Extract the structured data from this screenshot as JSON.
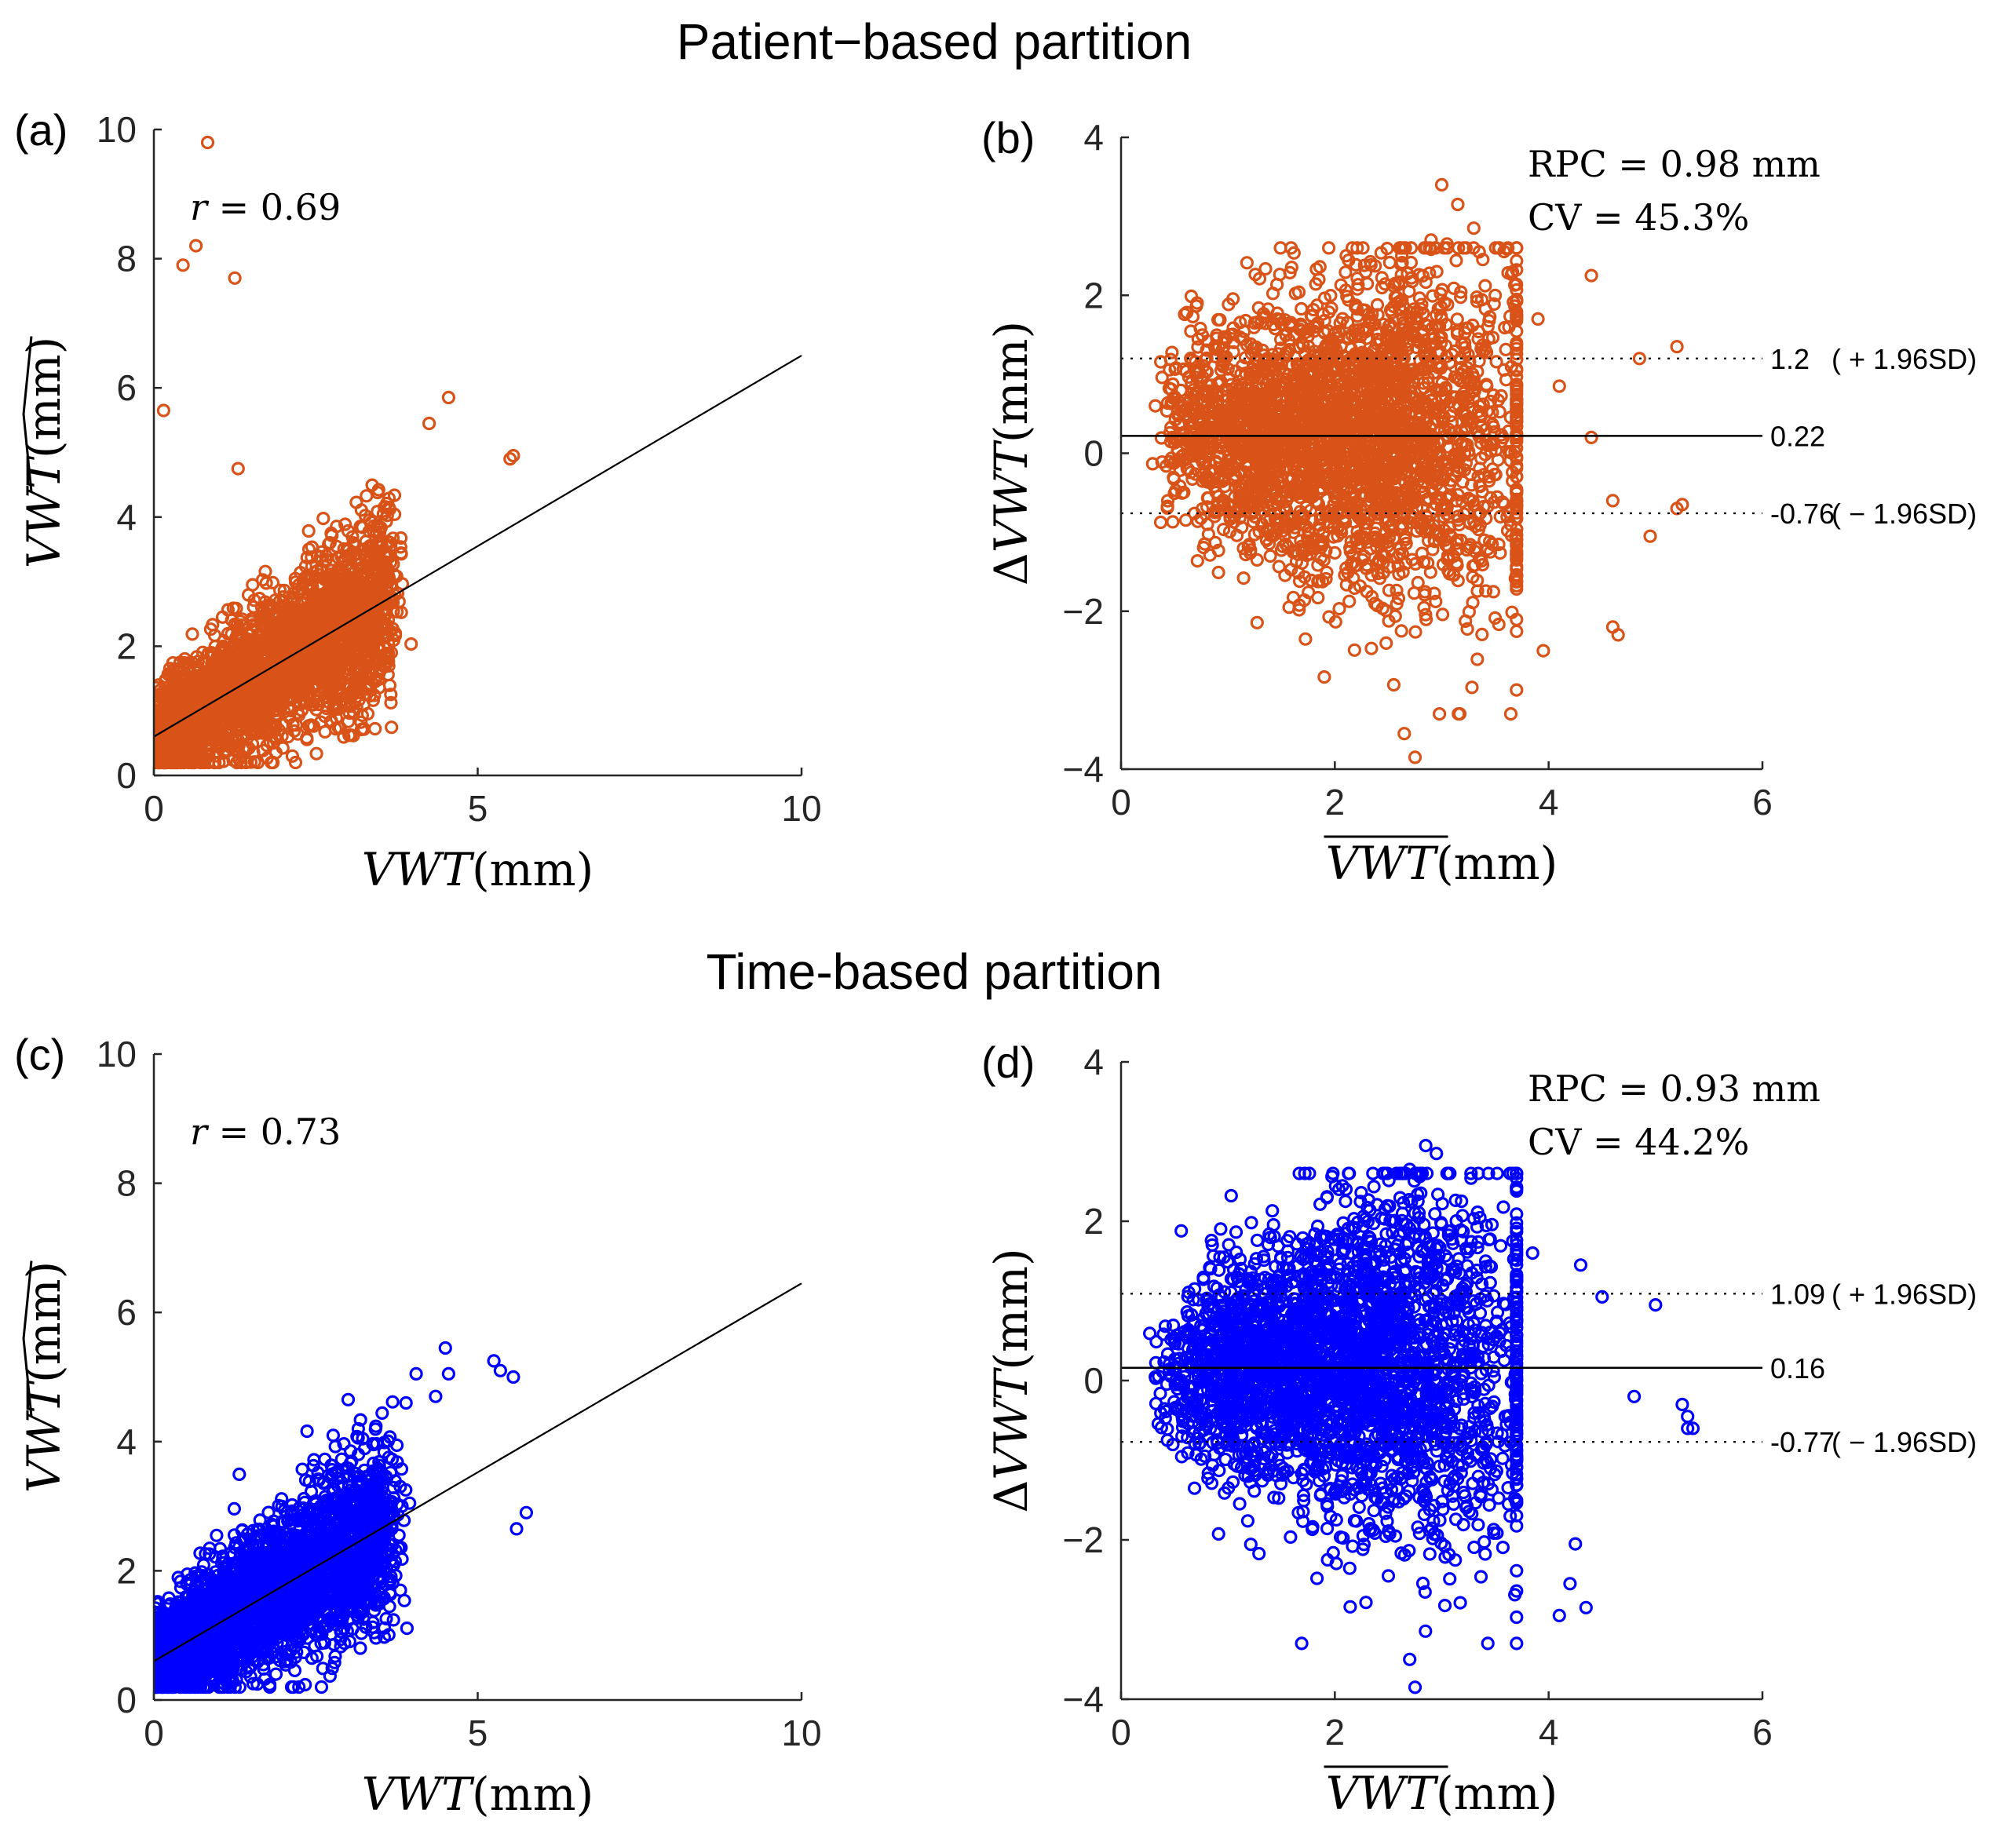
{
  "titles": {
    "top": "Patient−based partition",
    "bottom": "Time-based partition"
  },
  "colors": {
    "patient": "#D95319",
    "time": "#0000FF"
  },
  "chart_data": [
    {
      "id": "a",
      "type": "scatter",
      "panel_label": "(a)",
      "x_axis": {
        "label_var": "VWT",
        "label_unit": "(mm)",
        "lim": [
          0,
          10
        ],
        "ticks": [
          0,
          5,
          10
        ]
      },
      "y_axis": {
        "label_var": "VWT̂",
        "label_unit": "(mm)",
        "label_hat": true,
        "lim": [
          0,
          10
        ],
        "ticks": [
          0,
          2,
          4,
          6,
          8,
          10
        ]
      },
      "annotation": {
        "symbol": "r",
        "text": " = 0.69"
      },
      "fit_line": {
        "x": [
          0,
          10
        ],
        "y": [
          0.6,
          6.5
        ]
      },
      "series": [
        {
          "color": "#D95319",
          "marker": "circle-open",
          "n_points": 3000,
          "x_range": [
            0.1,
            5.8
          ],
          "y_range": [
            0,
            9.8
          ]
        }
      ],
      "outliers": [
        [
          0.83,
          9.8
        ],
        [
          0.65,
          8.2
        ],
        [
          0.45,
          7.9
        ],
        [
          1.25,
          7.7
        ],
        [
          0.15,
          5.65
        ],
        [
          4.55,
          5.85
        ],
        [
          4.25,
          5.45
        ],
        [
          5.55,
          4.95
        ],
        [
          5.5,
          4.9
        ],
        [
          1.3,
          4.75
        ]
      ]
    },
    {
      "id": "b",
      "type": "scatter",
      "panel_label": "(b)",
      "x_axis": {
        "label_var": "VWT",
        "label_unit": "(mm)",
        "label_bar": true,
        "lim": [
          0,
          6
        ],
        "ticks": [
          0,
          2,
          4,
          6
        ]
      },
      "y_axis": {
        "label_prefix": "Δ",
        "label_var": "VWT",
        "label_unit": "(mm)",
        "lim": [
          -4,
          4
        ],
        "ticks": [
          -4,
          -2,
          0,
          2,
          4
        ]
      },
      "annotation": {
        "line1": "RPC = 0.98 mm",
        "line2": "CV = 45.3%"
      },
      "mean_line": {
        "value": 0.22,
        "label": "0.22"
      },
      "upper_loa": {
        "value": 1.2,
        "label": "1.2",
        "suffix": "( + 1.96SD)"
      },
      "lower_loa": {
        "value": -0.76,
        "label": "-0.76",
        "suffix": "( − 1.96SD)"
      },
      "series": [
        {
          "color": "#D95319",
          "marker": "circle-open",
          "n_points": 3000,
          "x_range": [
            0.2,
            5.3
          ],
          "y_range": [
            -3.85,
            3.4
          ]
        }
      ],
      "outliers": [
        [
          3.0,
          3.4
        ],
        [
          3.15,
          3.15
        ],
        [
          3.3,
          2.85
        ],
        [
          2.9,
          2.7
        ],
        [
          3.05,
          2.65
        ],
        [
          3.35,
          2.55
        ],
        [
          4.4,
          2.25
        ],
        [
          3.5,
          2.0
        ],
        [
          3.9,
          1.7
        ],
        [
          4.85,
          1.2
        ],
        [
          5.2,
          1.35
        ],
        [
          4.1,
          0.85
        ],
        [
          4.4,
          0.2
        ],
        [
          5.2,
          -0.7
        ],
        [
          5.25,
          -0.65
        ],
        [
          4.6,
          -0.6
        ],
        [
          4.95,
          -1.05
        ],
        [
          4.6,
          -2.2
        ],
        [
          4.65,
          -2.3
        ],
        [
          2.75,
          -3.85
        ],
        [
          2.65,
          -3.55
        ],
        [
          3.95,
          -2.5
        ]
      ]
    },
    {
      "id": "c",
      "type": "scatter",
      "panel_label": "(c)",
      "x_axis": {
        "label_var": "VWT",
        "label_unit": "(mm)",
        "lim": [
          0,
          10
        ],
        "ticks": [
          0,
          5,
          10
        ]
      },
      "y_axis": {
        "label_var": "VWT̂",
        "label_unit": "(mm)",
        "label_hat": true,
        "lim": [
          0,
          10
        ],
        "ticks": [
          0,
          2,
          4,
          6,
          8,
          10
        ]
      },
      "annotation": {
        "symbol": "r",
        "text": " = 0.73"
      },
      "fit_line": {
        "x": [
          0,
          10
        ],
        "y": [
          0.6,
          6.45
        ]
      },
      "series": [
        {
          "color": "#0000FF",
          "marker": "circle-open",
          "n_points": 3000,
          "x_range": [
            0,
            5.8
          ],
          "y_range": [
            0,
            5.5
          ]
        }
      ],
      "outliers": [
        [
          4.5,
          5.45
        ],
        [
          5.25,
          5.25
        ],
        [
          5.35,
          5.1
        ],
        [
          5.55,
          5.0
        ],
        [
          4.05,
          5.05
        ],
        [
          4.55,
          5.05
        ],
        [
          4.35,
          4.7
        ],
        [
          3.0,
          4.65
        ],
        [
          5.75,
          2.9
        ],
        [
          5.6,
          2.65
        ]
      ]
    },
    {
      "id": "d",
      "type": "scatter",
      "panel_label": "(d)",
      "x_axis": {
        "label_var": "VWT",
        "label_unit": "(mm)",
        "label_bar": true,
        "lim": [
          0,
          6
        ],
        "ticks": [
          0,
          2,
          4,
          6
        ]
      },
      "y_axis": {
        "label_prefix": "Δ",
        "label_var": "VWT",
        "label_unit": "(mm)",
        "lim": [
          -4,
          4
        ],
        "ticks": [
          -4,
          -2,
          0,
          2,
          4
        ]
      },
      "annotation": {
        "line1": "RPC = 0.93 mm",
        "line2": "CV = 44.2%"
      },
      "mean_line": {
        "value": 0.16,
        "label": "0.16"
      },
      "upper_loa": {
        "value": 1.09,
        "label": "1.09",
        "suffix": "( + 1.96SD)"
      },
      "lower_loa": {
        "value": -0.77,
        "label": "-0.77",
        "suffix": "( − 1.96SD)"
      },
      "series": [
        {
          "color": "#0000FF",
          "marker": "circle-open",
          "n_points": 3000,
          "x_range": [
            0.1,
            5.35
          ],
          "y_range": [
            -3.85,
            2.95
          ]
        }
      ],
      "outliers": [
        [
          2.85,
          2.95
        ],
        [
          2.95,
          2.85
        ],
        [
          2.7,
          2.65
        ],
        [
          3.85,
          1.6
        ],
        [
          4.3,
          1.45
        ],
        [
          4.5,
          1.05
        ],
        [
          5.0,
          0.95
        ],
        [
          4.8,
          -0.2
        ],
        [
          5.25,
          -0.3
        ],
        [
          5.3,
          -0.45
        ],
        [
          5.35,
          -0.6
        ],
        [
          5.3,
          -0.6
        ],
        [
          4.25,
          -2.05
        ],
        [
          4.35,
          -2.85
        ],
        [
          4.1,
          -2.95
        ],
        [
          2.75,
          -3.85
        ],
        [
          2.7,
          -3.5
        ],
        [
          4.2,
          -2.55
        ]
      ]
    }
  ]
}
